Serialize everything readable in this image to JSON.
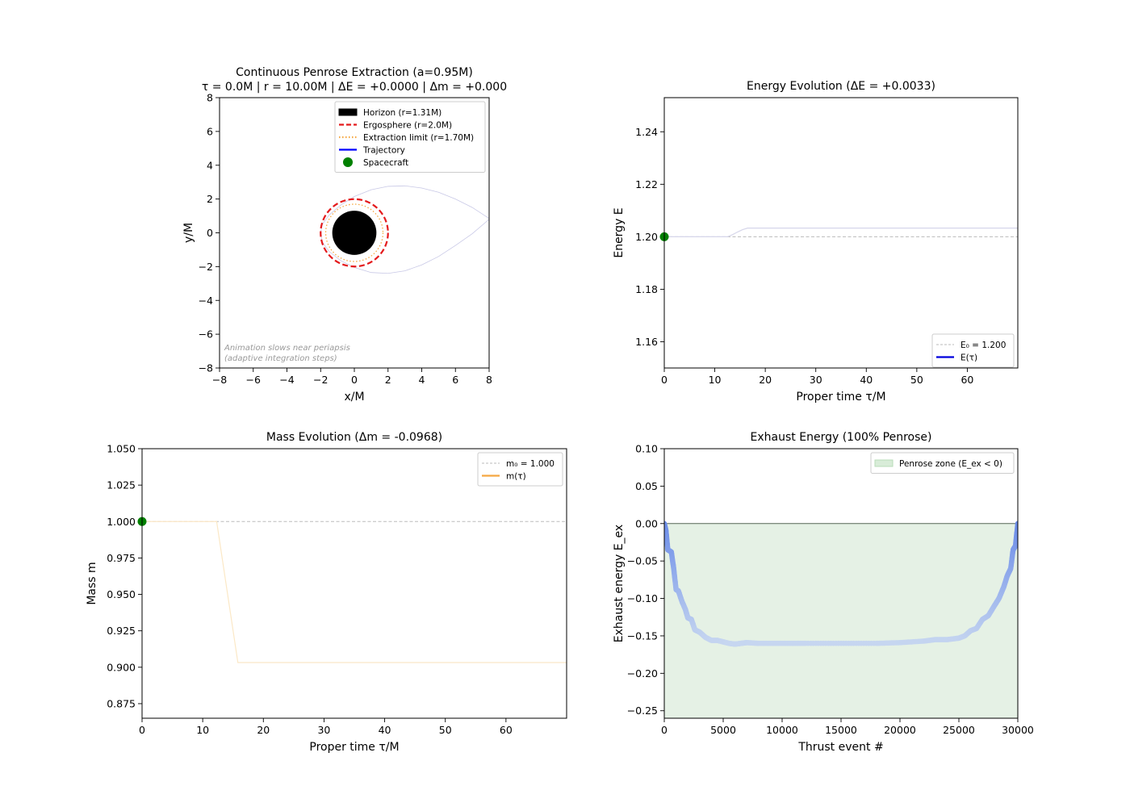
{
  "chart_data": [
    {
      "id": "orbit",
      "type": "line",
      "title": "Continuous Penrose Extraction (a=0.95M)",
      "subtitle": "τ = 0.0M  |  r = 10.00M  |  ΔE = +0.0000  |  Δm = +0.000",
      "xlabel": "x/M",
      "ylabel": "y/M",
      "xlim": [
        -8,
        8
      ],
      "ylim": [
        -8,
        8
      ],
      "xticks": [
        -8,
        -6,
        -4,
        -2,
        0,
        2,
        4,
        6,
        8
      ],
      "yticks": [
        -8,
        -6,
        -4,
        -2,
        0,
        2,
        4,
        6,
        8
      ],
      "xtick_labels": [
        "−8",
        "−6",
        "−4",
        "−2",
        "0",
        "2",
        "4",
        "6",
        "8"
      ],
      "ytick_labels": [
        "−8",
        "−6",
        "−4",
        "−2",
        "0",
        "2",
        "4",
        "6",
        "8"
      ],
      "horizon_r": 1.31,
      "ergosphere_r": 2.0,
      "extraction_r": 1.7,
      "trajectory": {
        "x": [
          8.0,
          7.0,
          6.0,
          5.0,
          4.0,
          3.0,
          2.0,
          1.0,
          0.0,
          -0.8,
          -1.5,
          -1.9,
          -2.0,
          -1.9,
          -1.5,
          -0.8,
          0.0,
          1.0,
          2.0,
          3.0,
          4.0,
          5.0,
          6.0,
          7.0,
          8.0
        ],
        "y": [
          0.85,
          1.5,
          2.0,
          2.4,
          2.65,
          2.78,
          2.75,
          2.55,
          2.15,
          1.65,
          1.05,
          0.5,
          0.0,
          -0.55,
          -1.1,
          -1.65,
          -2.05,
          -2.35,
          -2.4,
          -2.25,
          -1.9,
          -1.4,
          -0.75,
          -0.05,
          0.8
        ]
      },
      "spacecraft": {
        "x": 10.0,
        "y": 0.0
      },
      "legend": [
        {
          "label": "Horizon (r=1.31M)",
          "color": "#000000",
          "style": "patch"
        },
        {
          "label": "Ergosphere (r=2.0M)",
          "color": "#e41a1c",
          "style": "dashed"
        },
        {
          "label": "Extraction limit (r=1.70M)",
          "color": "#f5a742",
          "style": "dotted"
        },
        {
          "label": "Trajectory",
          "color": "#0000ff",
          "style": "solid"
        },
        {
          "label": "Spacecraft",
          "color": "#008000",
          "style": "marker"
        }
      ],
      "annotation": [
        "Animation slows near periapsis",
        "(adaptive integration steps)"
      ],
      "legend_position": "upper-right"
    },
    {
      "id": "energy",
      "type": "line",
      "title": "Energy Evolution (ΔE = +0.0033)",
      "xlabel": "Proper time τ/M",
      "ylabel": "Energy E",
      "xlim": [
        0,
        70
      ],
      "ylim": [
        1.15,
        1.253
      ],
      "xticks": [
        0,
        10,
        20,
        30,
        40,
        50,
        60
      ],
      "yticks": [
        1.16,
        1.18,
        1.2,
        1.22,
        1.24
      ],
      "xtick_labels": [
        "0",
        "10",
        "20",
        "30",
        "40",
        "50",
        "60"
      ],
      "ytick_labels": [
        "1.16",
        "1.18",
        "1.20",
        "1.22",
        "1.24"
      ],
      "reference": 1.2,
      "series": [
        {
          "name": "E(τ)",
          "color": "#0000dd",
          "x": [
            0,
            12.5,
            13.5,
            14.5,
            15.5,
            16.5,
            70
          ],
          "y": [
            1.2,
            1.2,
            1.2008,
            1.2018,
            1.2027,
            1.2033,
            1.2033
          ]
        }
      ],
      "marker": {
        "x": 0,
        "y": 1.2
      },
      "legend": [
        {
          "label": "E₀ = 1.200",
          "color": "#bbbbbb",
          "style": "dashed"
        },
        {
          "label": "E(τ)",
          "color": "#0000dd",
          "style": "solid"
        }
      ],
      "legend_position": "lower-right"
    },
    {
      "id": "mass",
      "type": "line",
      "title": "Mass Evolution (Δm = -0.0968)",
      "xlabel": "Proper time τ/M",
      "ylabel": "Mass m",
      "xlim": [
        0,
        70
      ],
      "ylim": [
        0.865,
        1.05
      ],
      "xticks": [
        0,
        10,
        20,
        30,
        40,
        50,
        60
      ],
      "yticks": [
        0.875,
        0.9,
        0.925,
        0.95,
        0.975,
        1.0,
        1.025,
        1.05
      ],
      "xtick_labels": [
        "0",
        "10",
        "20",
        "30",
        "40",
        "50",
        "60"
      ],
      "ytick_labels": [
        "0.875",
        "0.900",
        "0.925",
        "0.950",
        "0.975",
        "1.000",
        "1.025",
        "1.050"
      ],
      "reference": 1.0,
      "series": [
        {
          "name": "m(τ)",
          "color": "#f5a742",
          "x": [
            0,
            12.3,
            15.8,
            70
          ],
          "y": [
            1.0,
            1.0,
            0.9032,
            0.9032
          ]
        }
      ],
      "marker": {
        "x": 0,
        "y": 1.0
      },
      "legend": [
        {
          "label": "m₀ = 1.000",
          "color": "#bbbbbb",
          "style": "dashed"
        },
        {
          "label": "m(τ)",
          "color": "#f5a742",
          "style": "solid"
        }
      ],
      "legend_position": "upper-right"
    },
    {
      "id": "exhaust",
      "type": "scatter",
      "title": "Exhaust Energy (100% Penrose)",
      "xlabel": "Thrust event #",
      "ylabel": "Exhaust energy E_ex",
      "xlim": [
        0,
        30000
      ],
      "ylim": [
        -0.26,
        0.1
      ],
      "xticks": [
        0,
        5000,
        10000,
        15000,
        20000,
        25000,
        30000
      ],
      "yticks": [
        -0.25,
        -0.2,
        -0.15,
        -0.1,
        -0.05,
        0.0,
        0.05,
        0.1
      ],
      "xtick_labels": [
        "0",
        "5000",
        "10000",
        "15000",
        "20000",
        "25000",
        "30000"
      ],
      "ytick_labels": [
        "−0.25",
        "−0.20",
        "−0.15",
        "−0.10",
        "−0.05",
        "0.00",
        "0.05",
        "0.10"
      ],
      "series": [
        {
          "name": "E_ex",
          "x": [
            0,
            150,
            300,
            600,
            800,
            1000,
            1200,
            1500,
            1800,
            2000,
            2300,
            2600,
            3000,
            3500,
            4000,
            4500,
            5000,
            5500,
            6000,
            6500,
            7000,
            8000,
            10000,
            12000,
            15000,
            18000,
            20000,
            22000,
            23000,
            24000,
            25000,
            25500,
            26000,
            26500,
            27000,
            27500,
            28000,
            28400,
            28800,
            29100,
            29400,
            29600,
            29800,
            30000
          ],
          "y": [
            0.0,
            -0.01,
            -0.035,
            -0.038,
            -0.06,
            -0.088,
            -0.09,
            -0.104,
            -0.115,
            -0.126,
            -0.128,
            -0.142,
            -0.145,
            -0.152,
            -0.156,
            -0.156,
            -0.158,
            -0.16,
            -0.161,
            -0.16,
            -0.159,
            -0.16,
            -0.16,
            -0.16,
            -0.16,
            -0.16,
            -0.159,
            -0.157,
            -0.155,
            -0.155,
            -0.153,
            -0.15,
            -0.143,
            -0.14,
            -0.128,
            -0.123,
            -0.11,
            -0.1,
            -0.085,
            -0.07,
            -0.06,
            -0.035,
            -0.03,
            0.0
          ]
        }
      ],
      "legend": [
        {
          "label": "Penrose zone (E_ex < 0)",
          "color": "#d8ecd8",
          "style": "patch"
        }
      ],
      "legend_position": "upper-right"
    }
  ]
}
